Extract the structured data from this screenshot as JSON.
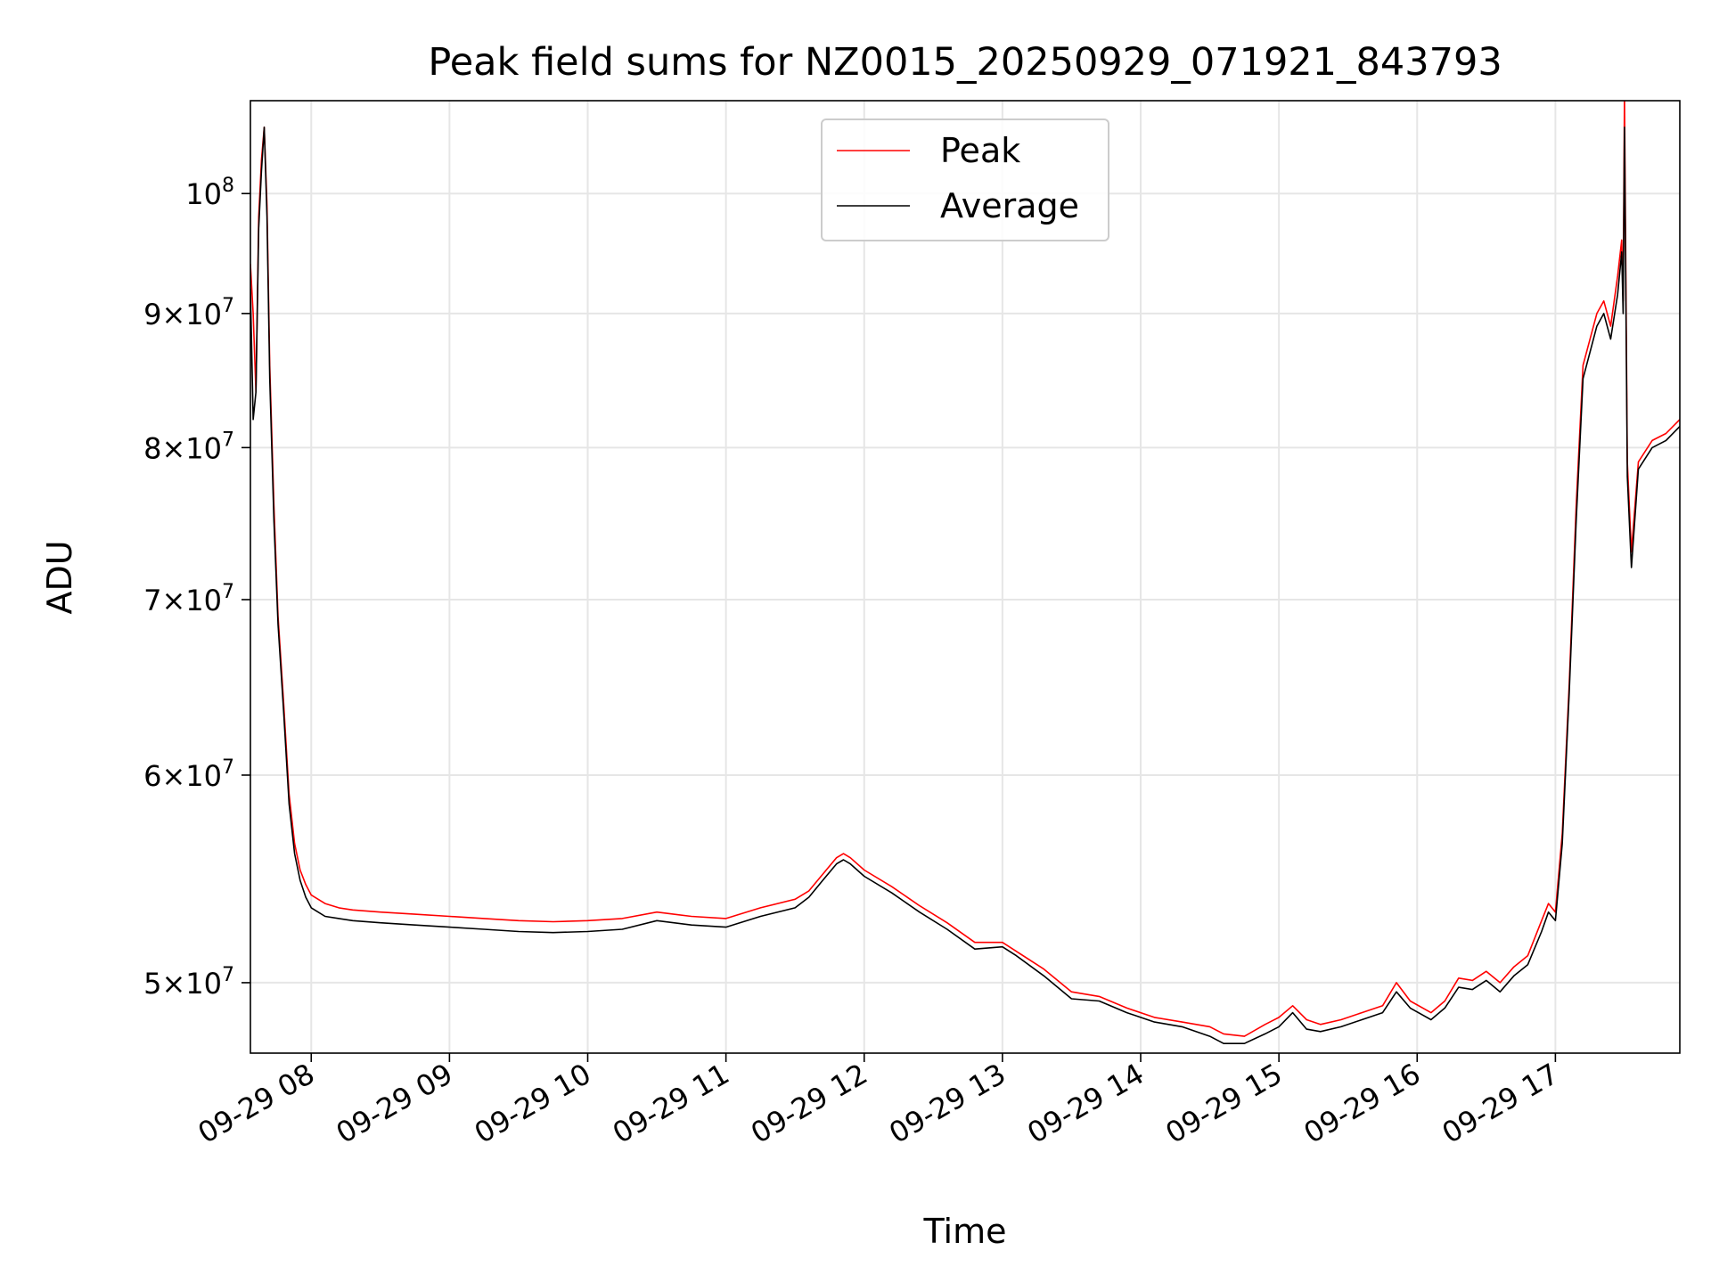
{
  "chart_data": {
    "type": "line",
    "title": "Peak field sums for NZ0015_20250929_071921_843793",
    "xlabel": "Time",
    "ylabel": "ADU",
    "yscale": "log",
    "grid": true,
    "legend_location": "upper center",
    "x_units": "hours (09-29)",
    "xlim": [
      7.56,
      17.9
    ],
    "ylim": [
      47000000,
      108500000
    ],
    "x_ticks": [
      {
        "value": 8,
        "label": "09-29 08"
      },
      {
        "value": 9,
        "label": "09-29 09"
      },
      {
        "value": 10,
        "label": "09-29 10"
      },
      {
        "value": 11,
        "label": "09-29 11"
      },
      {
        "value": 12,
        "label": "09-29 12"
      },
      {
        "value": 13,
        "label": "09-29 13"
      },
      {
        "value": 14,
        "label": "09-29 14"
      },
      {
        "value": 15,
        "label": "09-29 15"
      },
      {
        "value": 16,
        "label": "09-29 16"
      },
      {
        "value": 17,
        "label": "09-29 17"
      }
    ],
    "y_ticks": [
      {
        "value": 50000000,
        "base": "5×10",
        "exp": "7"
      },
      {
        "value": 60000000,
        "base": "6×10",
        "exp": "7"
      },
      {
        "value": 70000000,
        "base": "7×10",
        "exp": "7"
      },
      {
        "value": 80000000,
        "base": "8×10",
        "exp": "7"
      },
      {
        "value": 90000000,
        "base": "9×10",
        "exp": "7"
      },
      {
        "value": 100000000,
        "base": "10",
        "exp": "8"
      }
    ],
    "series": [
      {
        "name": "Peak",
        "color": "#ff0000",
        "x": [
          7.56,
          7.58,
          7.6,
          7.62,
          7.64,
          7.66,
          7.68,
          7.7,
          7.73,
          7.76,
          7.8,
          7.84,
          7.88,
          7.92,
          7.96,
          8.0,
          8.05,
          8.1,
          8.2,
          8.3,
          8.5,
          8.75,
          9.0,
          9.25,
          9.5,
          9.75,
          10.0,
          10.25,
          10.5,
          10.75,
          11.0,
          11.25,
          11.5,
          11.6,
          11.7,
          11.8,
          11.85,
          11.9,
          12.0,
          12.2,
          12.4,
          12.6,
          12.8,
          13.0,
          13.1,
          13.3,
          13.5,
          13.7,
          13.9,
          14.1,
          14.3,
          14.5,
          14.6,
          14.75,
          14.9,
          15.0,
          15.1,
          15.2,
          15.3,
          15.45,
          15.6,
          15.75,
          15.85,
          15.95,
          16.1,
          16.2,
          16.3,
          16.4,
          16.5,
          16.6,
          16.7,
          16.8,
          16.9,
          16.95,
          17.0,
          17.05,
          17.1,
          17.15,
          17.2,
          17.3,
          17.35,
          17.4,
          17.45,
          17.48,
          17.49,
          17.5,
          17.52,
          17.55,
          17.6,
          17.7,
          17.8,
          17.9
        ],
        "values": [
          94000000,
          90000000,
          84000000,
          98000000,
          103000000,
          106000000,
          99000000,
          86000000,
          76000000,
          69000000,
          64000000,
          59000000,
          56500000,
          55200000,
          54500000,
          54000000,
          53800000,
          53600000,
          53400000,
          53300000,
          53200000,
          53100000,
          53000000,
          52900000,
          52800000,
          52750000,
          52800000,
          52900000,
          53200000,
          53000000,
          52900000,
          53400000,
          53800000,
          54200000,
          55000000,
          55800000,
          56000000,
          55800000,
          55200000,
          54400000,
          53500000,
          52700000,
          51800000,
          51800000,
          51400000,
          50600000,
          49600000,
          49400000,
          48900000,
          48500000,
          48300000,
          48100000,
          47800000,
          47700000,
          48200000,
          48500000,
          49000000,
          48400000,
          48200000,
          48400000,
          48700000,
          49000000,
          50000000,
          49200000,
          48700000,
          49200000,
          50200000,
          50100000,
          50500000,
          50000000,
          50700000,
          51200000,
          52800000,
          53600000,
          53200000,
          57000000,
          65000000,
          76000000,
          86000000,
          90000000,
          91000000,
          89000000,
          93000000,
          96000000,
          91000000,
          109000000,
          79000000,
          73000000,
          79000000,
          80500000,
          81000000,
          82000000
        ]
      },
      {
        "name": "Average",
        "color": "#000000",
        "x": [
          7.56,
          7.58,
          7.6,
          7.62,
          7.64,
          7.66,
          7.68,
          7.7,
          7.73,
          7.76,
          7.8,
          7.84,
          7.88,
          7.92,
          7.96,
          8.0,
          8.05,
          8.1,
          8.2,
          8.3,
          8.5,
          8.75,
          9.0,
          9.25,
          9.5,
          9.75,
          10.0,
          10.25,
          10.5,
          10.75,
          11.0,
          11.25,
          11.5,
          11.6,
          11.7,
          11.8,
          11.85,
          11.9,
          12.0,
          12.2,
          12.4,
          12.6,
          12.8,
          13.0,
          13.1,
          13.3,
          13.5,
          13.7,
          13.9,
          14.1,
          14.3,
          14.5,
          14.6,
          14.75,
          14.9,
          15.0,
          15.1,
          15.2,
          15.3,
          15.45,
          15.6,
          15.75,
          15.85,
          15.95,
          16.1,
          16.2,
          16.3,
          16.4,
          16.5,
          16.6,
          16.7,
          16.8,
          16.9,
          16.95,
          17.0,
          17.05,
          17.1,
          17.15,
          17.2,
          17.3,
          17.35,
          17.4,
          17.45,
          17.48,
          17.49,
          17.5,
          17.52,
          17.55,
          17.6,
          17.7,
          17.8,
          17.9
        ],
        "values": [
          92000000,
          82000000,
          84000000,
          97000000,
          102000000,
          106000000,
          98000000,
          85000000,
          75000000,
          68500000,
          63500000,
          58500000,
          56000000,
          54700000,
          53900000,
          53400000,
          53200000,
          53000000,
          52900000,
          52800000,
          52700000,
          52600000,
          52500000,
          52400000,
          52300000,
          52250000,
          52300000,
          52400000,
          52800000,
          52600000,
          52500000,
          53000000,
          53400000,
          53900000,
          54700000,
          55500000,
          55700000,
          55500000,
          54900000,
          54100000,
          53200000,
          52400000,
          51500000,
          51600000,
          51200000,
          50300000,
          49300000,
          49200000,
          48700000,
          48300000,
          48100000,
          47700000,
          47400000,
          47400000,
          47800000,
          48100000,
          48700000,
          48000000,
          47900000,
          48100000,
          48400000,
          48700000,
          49600000,
          48900000,
          48400000,
          48900000,
          49800000,
          49700000,
          50100000,
          49600000,
          50300000,
          50800000,
          52300000,
          53200000,
          52800000,
          56500000,
          64500000,
          75000000,
          85000000,
          89000000,
          90000000,
          88000000,
          91500000,
          95000000,
          90000000,
          106000000,
          78000000,
          72000000,
          78500000,
          80000000,
          80500000,
          81500000
        ]
      }
    ]
  }
}
